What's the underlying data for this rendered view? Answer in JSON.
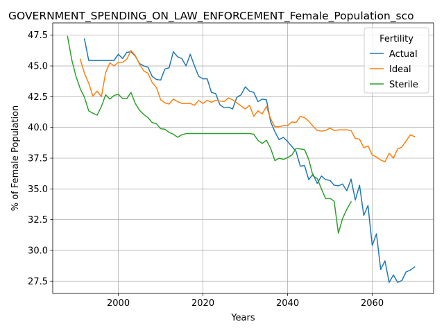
{
  "chart_data": {
    "type": "line",
    "title": "GOVERNMENT_SPENDING_ON_LAW_ENFORCEMENT_Female_Population_sco",
    "xlabel": "Years",
    "ylabel": "% of Female Population",
    "xlim": [
      1984.5,
      2074.5
    ],
    "ylim": [
      26.5,
      48.5
    ],
    "xticks": [
      2000,
      2020,
      2040,
      2060
    ],
    "yticks": [
      27.5,
      30.0,
      32.5,
      35.0,
      37.5,
      40.0,
      42.5,
      45.0,
      47.5
    ],
    "ytick_labels": [
      "27.5",
      "30.0",
      "32.5",
      "35.0",
      "37.5",
      "40.0",
      "42.5",
      "45.0",
      "47.5"
    ],
    "grid": true,
    "legend": {
      "title": "Fertility",
      "position": "top-right"
    },
    "series": [
      {
        "name": "Actual",
        "color": "#1f77b4",
        "points": [
          [
            1992,
            47.2
          ],
          [
            1993,
            45.45
          ],
          [
            1994,
            45.45
          ],
          [
            1995,
            45.45
          ],
          [
            1996,
            45.45
          ],
          [
            1997,
            45.45
          ],
          [
            1998,
            45.45
          ],
          [
            1999,
            45.45
          ],
          [
            2000,
            45.95
          ],
          [
            2001,
            45.6
          ],
          [
            2002,
            46.1
          ],
          [
            2003,
            46.15
          ],
          [
            2004,
            45.8
          ],
          [
            2005,
            45.2
          ],
          [
            2006,
            45.0
          ],
          [
            2007,
            44.9
          ],
          [
            2008,
            44.15
          ],
          [
            2009,
            43.9
          ],
          [
            2010,
            43.85
          ],
          [
            2011,
            44.75
          ],
          [
            2012,
            44.85
          ],
          [
            2013,
            46.15
          ],
          [
            2014,
            45.75
          ],
          [
            2015,
            45.6
          ],
          [
            2016,
            45.0
          ],
          [
            2017,
            45.95
          ],
          [
            2018,
            45.0
          ],
          [
            2019,
            44.15
          ],
          [
            2020,
            43.95
          ],
          [
            2021,
            43.95
          ],
          [
            2022,
            42.85
          ],
          [
            2023,
            42.75
          ],
          [
            2024,
            41.85
          ],
          [
            2025,
            41.6
          ],
          [
            2026,
            41.65
          ],
          [
            2027,
            41.5
          ],
          [
            2028,
            42.45
          ],
          [
            2029,
            42.65
          ],
          [
            2030,
            43.3
          ],
          [
            2031,
            42.95
          ],
          [
            2032,
            42.85
          ],
          [
            2033,
            42.1
          ],
          [
            2034,
            42.3
          ],
          [
            2035,
            42.25
          ],
          [
            2036,
            40.45
          ],
          [
            2037,
            39.65
          ],
          [
            2038,
            39.0
          ],
          [
            2039,
            39.2
          ],
          [
            2040,
            38.85
          ],
          [
            2041,
            38.45
          ],
          [
            2042,
            38.05
          ],
          [
            2043,
            36.85
          ],
          [
            2044,
            36.9
          ],
          [
            2045,
            35.75
          ],
          [
            2046,
            36.2
          ],
          [
            2047,
            35.45
          ],
          [
            2048,
            36.05
          ],
          [
            2049,
            35.75
          ],
          [
            2050,
            35.7
          ],
          [
            2051,
            35.3
          ],
          [
            2052,
            35.25
          ],
          [
            2053,
            35.4
          ],
          [
            2054,
            34.85
          ],
          [
            2055,
            35.8
          ],
          [
            2056,
            34.1
          ],
          [
            2057,
            35.3
          ],
          [
            2058,
            32.85
          ],
          [
            2059,
            33.65
          ],
          [
            2060,
            30.4
          ],
          [
            2061,
            31.35
          ],
          [
            2062,
            28.45
          ],
          [
            2063,
            29.15
          ],
          [
            2064,
            27.4
          ],
          [
            2065,
            28.0
          ],
          [
            2066,
            27.4
          ],
          [
            2067,
            27.55
          ],
          [
            2068,
            28.25
          ],
          [
            2069,
            28.4
          ],
          [
            2070,
            28.65
          ]
        ]
      },
      {
        "name": "Ideal",
        "color": "#ff7f0e",
        "points": [
          [
            1991,
            45.55
          ],
          [
            1992,
            44.4
          ],
          [
            1993,
            43.6
          ],
          [
            1994,
            42.55
          ],
          [
            1995,
            42.95
          ],
          [
            1996,
            42.5
          ],
          [
            1997,
            44.45
          ],
          [
            1998,
            45.25
          ],
          [
            1999,
            45.0
          ],
          [
            2000,
            45.3
          ],
          [
            2001,
            45.3
          ],
          [
            2002,
            45.55
          ],
          [
            2003,
            46.25
          ],
          [
            2004,
            45.85
          ],
          [
            2005,
            45.15
          ],
          [
            2006,
            44.6
          ],
          [
            2007,
            44.4
          ],
          [
            2008,
            43.65
          ],
          [
            2009,
            43.25
          ],
          [
            2010,
            42.25
          ],
          [
            2011,
            42.0
          ],
          [
            2012,
            41.9
          ],
          [
            2013,
            42.3
          ],
          [
            2014,
            42.1
          ],
          [
            2015,
            41.95
          ],
          [
            2016,
            41.95
          ],
          [
            2017,
            41.95
          ],
          [
            2018,
            41.8
          ],
          [
            2019,
            42.2
          ],
          [
            2020,
            41.95
          ],
          [
            2021,
            42.2
          ],
          [
            2022,
            42.05
          ],
          [
            2023,
            42.2
          ],
          [
            2024,
            42.15
          ],
          [
            2025,
            42.1
          ],
          [
            2026,
            42.4
          ],
          [
            2027,
            42.25
          ],
          [
            2028,
            42.0
          ],
          [
            2029,
            41.75
          ],
          [
            2030,
            41.5
          ],
          [
            2031,
            41.8
          ],
          [
            2032,
            40.9
          ],
          [
            2033,
            41.35
          ],
          [
            2034,
            41.1
          ],
          [
            2035,
            41.7
          ],
          [
            2036,
            40.7
          ],
          [
            2037,
            40.05
          ],
          [
            2038,
            40.05
          ],
          [
            2039,
            40.15
          ],
          [
            2040,
            40.15
          ],
          [
            2041,
            40.45
          ],
          [
            2042,
            40.4
          ],
          [
            2043,
            40.9
          ],
          [
            2044,
            40.8
          ],
          [
            2045,
            40.5
          ],
          [
            2046,
            40.1
          ],
          [
            2047,
            39.75
          ],
          [
            2048,
            39.7
          ],
          [
            2049,
            39.75
          ],
          [
            2050,
            39.95
          ],
          [
            2051,
            39.75
          ],
          [
            2052,
            39.8
          ],
          [
            2053,
            39.8
          ],
          [
            2054,
            39.8
          ],
          [
            2055,
            39.75
          ],
          [
            2056,
            39.1
          ],
          [
            2057,
            39.05
          ],
          [
            2058,
            38.35
          ],
          [
            2059,
            38.5
          ],
          [
            2060,
            37.75
          ],
          [
            2061,
            37.6
          ],
          [
            2062,
            37.35
          ],
          [
            2063,
            37.2
          ],
          [
            2064,
            37.9
          ],
          [
            2065,
            37.5
          ],
          [
            2066,
            38.25
          ],
          [
            2067,
            38.4
          ],
          [
            2068,
            38.9
          ],
          [
            2069,
            39.4
          ],
          [
            2070,
            39.25
          ]
        ]
      },
      {
        "name": "Sterile",
        "color": "#2ca02c",
        "points": [
          [
            1988,
            47.4
          ],
          [
            1989,
            45.5
          ],
          [
            1990,
            44.15
          ],
          [
            1991,
            43.15
          ],
          [
            1992,
            42.45
          ],
          [
            1993,
            41.35
          ],
          [
            1994,
            41.15
          ],
          [
            1995,
            41.0
          ],
          [
            1996,
            41.7
          ],
          [
            1997,
            42.65
          ],
          [
            1998,
            42.3
          ],
          [
            1999,
            42.6
          ],
          [
            2000,
            42.7
          ],
          [
            2001,
            42.35
          ],
          [
            2002,
            42.35
          ],
          [
            2003,
            42.85
          ],
          [
            2004,
            41.95
          ],
          [
            2005,
            41.4
          ],
          [
            2006,
            41.05
          ],
          [
            2007,
            40.8
          ],
          [
            2008,
            40.4
          ],
          [
            2009,
            40.3
          ],
          [
            2010,
            39.9
          ],
          [
            2011,
            39.85
          ],
          [
            2012,
            39.6
          ],
          [
            2013,
            39.45
          ],
          [
            2014,
            39.2
          ],
          [
            2015,
            39.4
          ],
          [
            2016,
            39.5
          ],
          [
            2017,
            39.5
          ],
          [
            2018,
            39.5
          ],
          [
            2019,
            39.5
          ],
          [
            2020,
            39.5
          ],
          [
            2021,
            39.5
          ],
          [
            2022,
            39.5
          ],
          [
            2023,
            39.5
          ],
          [
            2024,
            39.5
          ],
          [
            2025,
            39.5
          ],
          [
            2026,
            39.5
          ],
          [
            2027,
            39.5
          ],
          [
            2028,
            39.5
          ],
          [
            2029,
            39.5
          ],
          [
            2030,
            39.5
          ],
          [
            2031,
            39.5
          ],
          [
            2032,
            39.45
          ],
          [
            2033,
            38.95
          ],
          [
            2034,
            38.7
          ],
          [
            2035,
            38.95
          ],
          [
            2036,
            38.3
          ],
          [
            2037,
            37.3
          ],
          [
            2038,
            37.5
          ],
          [
            2039,
            37.4
          ],
          [
            2040,
            37.55
          ],
          [
            2041,
            37.75
          ],
          [
            2042,
            38.3
          ],
          [
            2043,
            38.25
          ],
          [
            2044,
            38.2
          ],
          [
            2045,
            37.4
          ],
          [
            2046,
            36.05
          ],
          [
            2047,
            35.85
          ],
          [
            2048,
            35.0
          ],
          [
            2049,
            34.2
          ],
          [
            2050,
            34.25
          ],
          [
            2051,
            34.0
          ],
          [
            2052,
            31.4
          ],
          [
            2053,
            32.6
          ],
          [
            2054,
            33.35
          ],
          [
            2055,
            33.95
          ]
        ]
      }
    ]
  }
}
